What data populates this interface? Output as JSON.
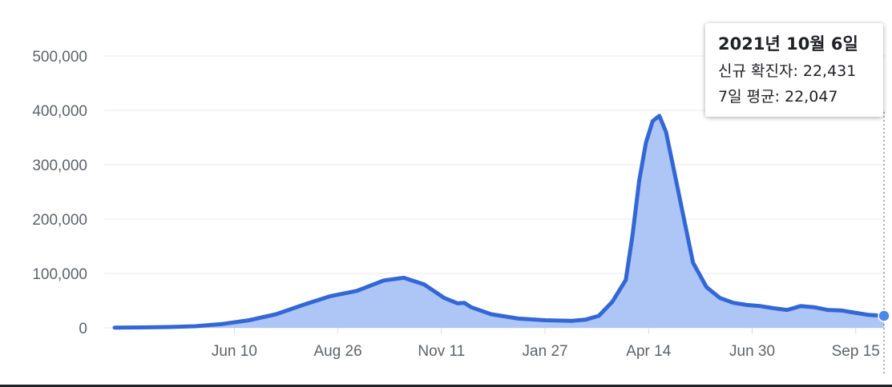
{
  "chart_data": {
    "type": "area",
    "y_ticks": [
      "500,000",
      "400,000",
      "300,000",
      "200,000",
      "100,000",
      "0"
    ],
    "y_tick_values": [
      500000,
      400000,
      300000,
      200000,
      100000,
      0
    ],
    "ylim": [
      0,
      520000
    ],
    "x_ticks": [
      "Jun 10",
      "Aug 26",
      "Nov 11",
      "Jan 27",
      "Apr 14",
      "Jun 30",
      "Sep 15"
    ],
    "x_tick_days": [
      89,
      166,
      243,
      320,
      397,
      474,
      551
    ],
    "x_range_days": [
      0,
      572
    ],
    "colors": {
      "line": "#3367d6",
      "area": "#aec6f5",
      "grid": "#e8eaed",
      "dot": "#4d87e8"
    },
    "series": [
      {
        "values_day": [
          0,
          20,
          40,
          60,
          80,
          100,
          120,
          140,
          160,
          180,
          200,
          215,
          230,
          245,
          255,
          260,
          265,
          280,
          300,
          320,
          340,
          350,
          360,
          370,
          380,
          385,
          390,
          395,
          400,
          405,
          410,
          415,
          420,
          425,
          430,
          440,
          450,
          460,
          470,
          480,
          490,
          500,
          510,
          520,
          530,
          540,
          550,
          560,
          572
        ],
        "values": [
          500,
          800,
          1500,
          3000,
          7000,
          14000,
          25000,
          42000,
          58000,
          68000,
          87000,
          92000,
          80000,
          55000,
          45000,
          46000,
          38000,
          25000,
          17000,
          14000,
          13000,
          15000,
          22000,
          48000,
          88000,
          170000,
          270000,
          340000,
          380000,
          390000,
          360000,
          300000,
          240000,
          180000,
          120000,
          75000,
          55000,
          46000,
          42000,
          40000,
          36000,
          33000,
          40000,
          38000,
          33000,
          32000,
          28000,
          24000,
          22047
        ]
      }
    ],
    "tooltip": {
      "date": "2021년 10월 6일",
      "line1": "신규 확진자: 22,431",
      "line2": "7일 평균: 22,047"
    }
  }
}
